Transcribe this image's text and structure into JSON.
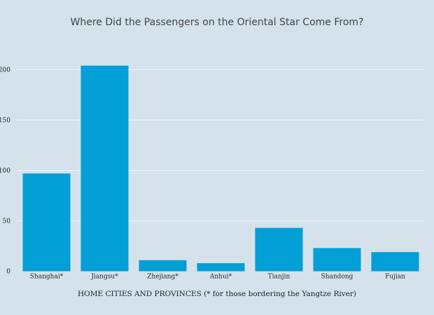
{
  "chart_data": {
    "type": "bar",
    "title": "Where Did the Passengers on the Oriental Star Come From?",
    "xlabel": "HOME CITIES AND PROVINCES (* for those bordering the Yangtze River)",
    "ylabel": "",
    "categories": [
      "Shanghai*",
      "Jiangsu*",
      "Zhejiang*",
      "Anhui*",
      "Tianjin",
      "Shandong",
      "Fujian"
    ],
    "values": [
      97,
      204,
      11,
      8,
      43,
      23,
      19
    ],
    "ylim": [
      0,
      214
    ],
    "yticks": [
      0,
      50,
      100,
      150,
      200
    ],
    "grid": true,
    "bar_color": "#039fd7",
    "grid_color": "#eef3f7"
  }
}
